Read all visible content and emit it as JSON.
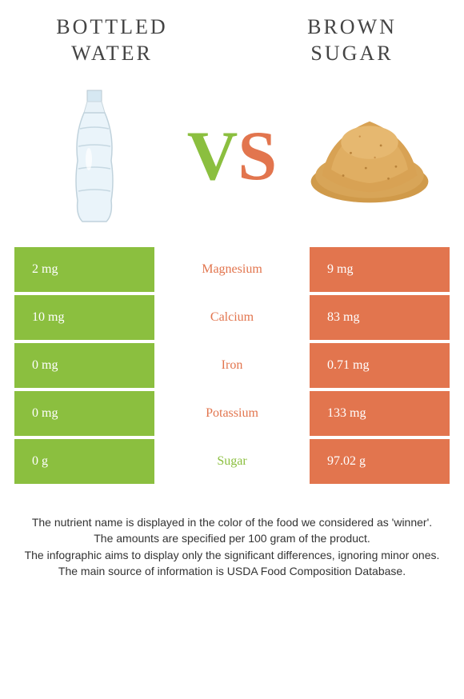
{
  "colors": {
    "left": "#8bbf3f",
    "right": "#e2754e",
    "title_text": "#444444",
    "footer_text": "#333333",
    "cell_text": "#ffffff",
    "vs_v": "#8bbf3f",
    "vs_s": "#e2754e"
  },
  "header": {
    "left_title": "BOTTLED WATER",
    "right_title": "BROWN SUGAR"
  },
  "vs": {
    "v": "V",
    "s": "S"
  },
  "table": {
    "rows": [
      {
        "left": "2 mg",
        "label": "Magnesium",
        "right": "9 mg",
        "winner": "right"
      },
      {
        "left": "10 mg",
        "label": "Calcium",
        "right": "83 mg",
        "winner": "right"
      },
      {
        "left": "0 mg",
        "label": "Iron",
        "right": "0.71 mg",
        "winner": "right"
      },
      {
        "left": "0 mg",
        "label": "Potassium",
        "right": "133 mg",
        "winner": "right"
      },
      {
        "left": "0 g",
        "label": "Sugar",
        "right": "97.02 g",
        "winner": "left"
      }
    ]
  },
  "footer": {
    "line1": "The nutrient name is displayed in the color of the food we considered as 'winner'.",
    "line2": "The amounts are specified per 100 gram of the product.",
    "line3": "The infographic aims to display only the significant differences, ignoring minor ones.",
    "line4": "The main source of information is USDA Food Composition Database."
  }
}
